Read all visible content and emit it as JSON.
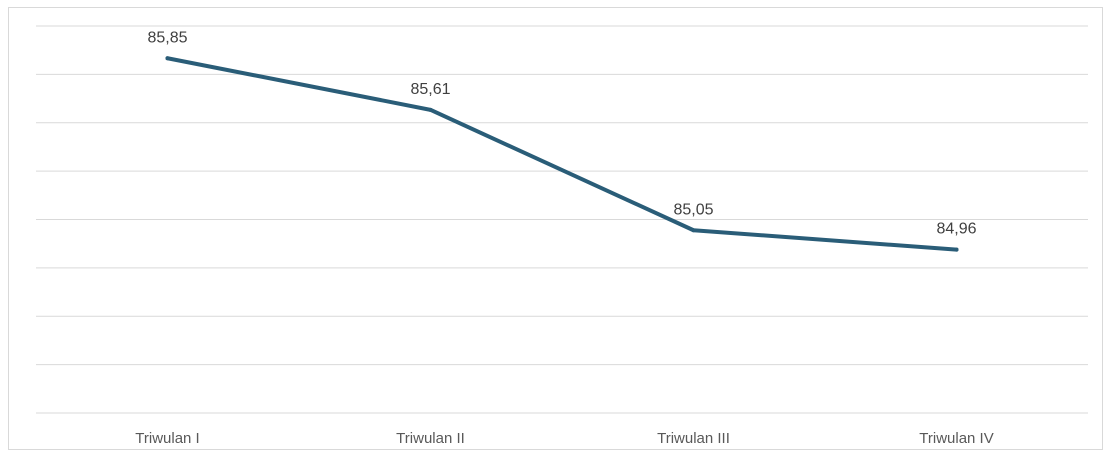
{
  "chart_data": {
    "type": "line",
    "categories": [
      "Triwulan I",
      "Triwulan II",
      "Triwulan III",
      "Triwulan IV"
    ],
    "values": [
      85.85,
      85.61,
      85.05,
      84.96
    ],
    "data_labels": [
      "85,85",
      "85,61",
      "85,05",
      "84,96"
    ],
    "title": "",
    "xlabel": "",
    "ylabel": "",
    "ylim": [
      84.2,
      86.0
    ],
    "grid": true,
    "legend": "none",
    "line_color": "#2a5d78",
    "grid_color": "#d9d9d9",
    "label_color": "#595959"
  }
}
